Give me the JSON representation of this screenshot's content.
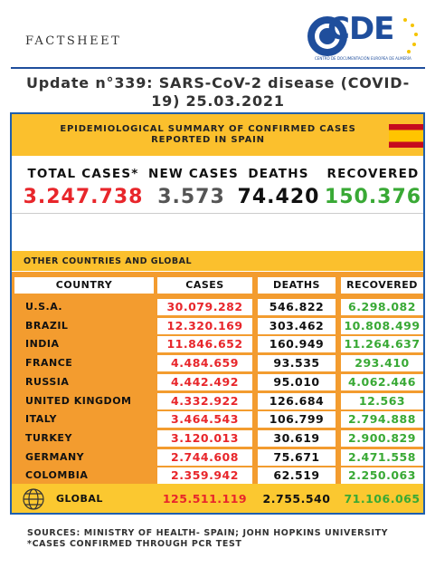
{
  "header": {
    "label": "FACTSHEET",
    "logo": "CDE",
    "logo_subtitle": "CENTRO DE DOCUMENTACIÓN EUROPEA DE ALMERÍA"
  },
  "title": "Update n°339: SARS-CoV-2 disease (COVID-19) 25.03.2021",
  "summary": {
    "heading": "EPIDEMIOLOGICAL SUMMARY OF CONFIRMED CASES REPORTED IN SPAIN",
    "stats": [
      {
        "label": "TOTAL CASES*",
        "value": "3.247.738"
      },
      {
        "label": "NEW CASES",
        "value": "3.573"
      },
      {
        "label": "DEATHS",
        "value": "74.420"
      },
      {
        "label": "RECOVERED",
        "value": "150.376"
      }
    ]
  },
  "table": {
    "heading": "OTHER COUNTRIES AND GLOBAL",
    "columns": [
      "COUNTRY",
      "CASES",
      "DEATHS",
      "RECOVERED"
    ],
    "rows": [
      [
        "U.S.A.",
        "30.079.282",
        "546.822",
        "6.298.082"
      ],
      [
        "BRAZIL",
        "12.320.169",
        "303.462",
        "10.808.499"
      ],
      [
        "INDIA",
        "11.846.652",
        "160.949",
        "11.264.637"
      ],
      [
        "FRANCE",
        "4.484.659",
        "93.535",
        "293.410"
      ],
      [
        "RUSSIA",
        "4.442.492",
        "95.010",
        "4.062.446"
      ],
      [
        "UNITED KINGDOM",
        "4.332.922",
        "126.684",
        "12.563"
      ],
      [
        "ITALY",
        "3.464.543",
        "106.799",
        "2.794.888"
      ],
      [
        "TURKEY",
        "3.120.013",
        "30.619",
        "2.900.829"
      ],
      [
        "GERMANY",
        "2.744.608",
        "75.671",
        "2.471.558"
      ],
      [
        "COLOMBIA",
        "2.359.942",
        "62.519",
        "2.250.063"
      ]
    ],
    "global": [
      "GLOBAL",
      "125.511.119",
      "2.755.540",
      "71.106.065"
    ]
  },
  "sources": [
    "SOURCES: MINISTRY OF HEALTH- SPAIN; JOHN HOPKINS UNIVERSITY",
    "*CASES CONFIRMED THROUGH PCR TEST"
  ]
}
